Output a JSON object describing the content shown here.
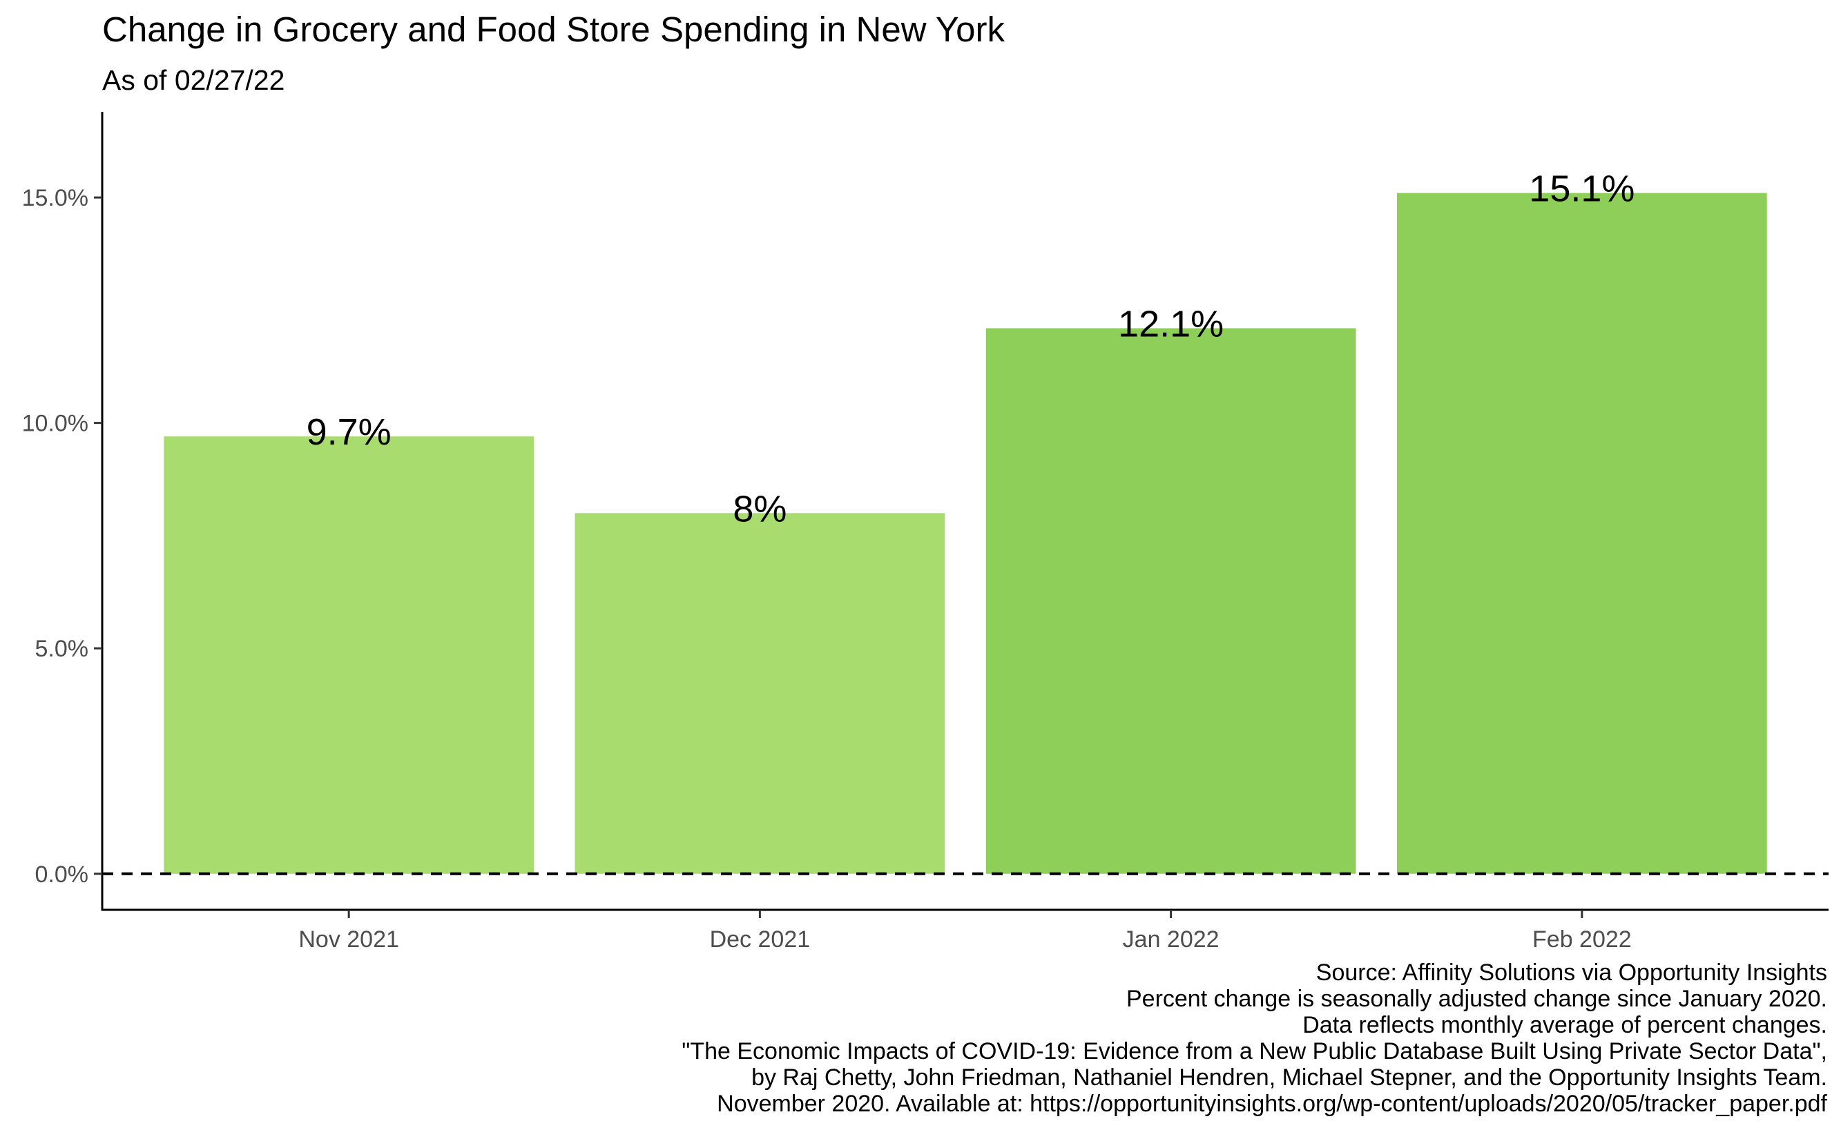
{
  "chart_data": {
    "type": "bar",
    "title": "Change in Grocery and Food Store Spending in New York",
    "subtitle": "As of 02/27/22",
    "categories": [
      "Nov 2021",
      "Dec 2021",
      "Jan 2022",
      "Feb 2022"
    ],
    "values": [
      9.7,
      8.0,
      12.1,
      15.1
    ],
    "value_labels": [
      "9.7%",
      "8%",
      "12.1%",
      "15.1%"
    ],
    "bar_colors": [
      "#a9dc6f",
      "#a9dc6f",
      "#8ecf5a",
      "#8ecf5a"
    ],
    "xlabel": "",
    "ylabel": "",
    "ylim": [
      -0.8,
      16.9
    ],
    "yticks": [
      0,
      5,
      10,
      15
    ],
    "ytick_labels": [
      "0.0%",
      "5.0%",
      "10.0%",
      "15.0%"
    ],
    "reference_line": {
      "y": 0,
      "style": "dashed",
      "color": "#000000"
    },
    "grid": false,
    "legend": "none",
    "caption": [
      "Source: Affinity Solutions via Opportunity Insights",
      "Percent change is seasonally adjusted change since January 2020.",
      "Data reflects monthly average of percent changes.",
      "\"The Economic Impacts of COVID-19: Evidence from a New Public Database Built Using Private Sector Data\",",
      "by Raj Chetty, John Friedman, Nathaniel Hendren, Michael Stepner, and the Opportunity Insights Team.",
      "November 2020. Available at: https://opportunityinsights.org/wp-content/uploads/2020/05/tracker_paper.pdf"
    ]
  }
}
